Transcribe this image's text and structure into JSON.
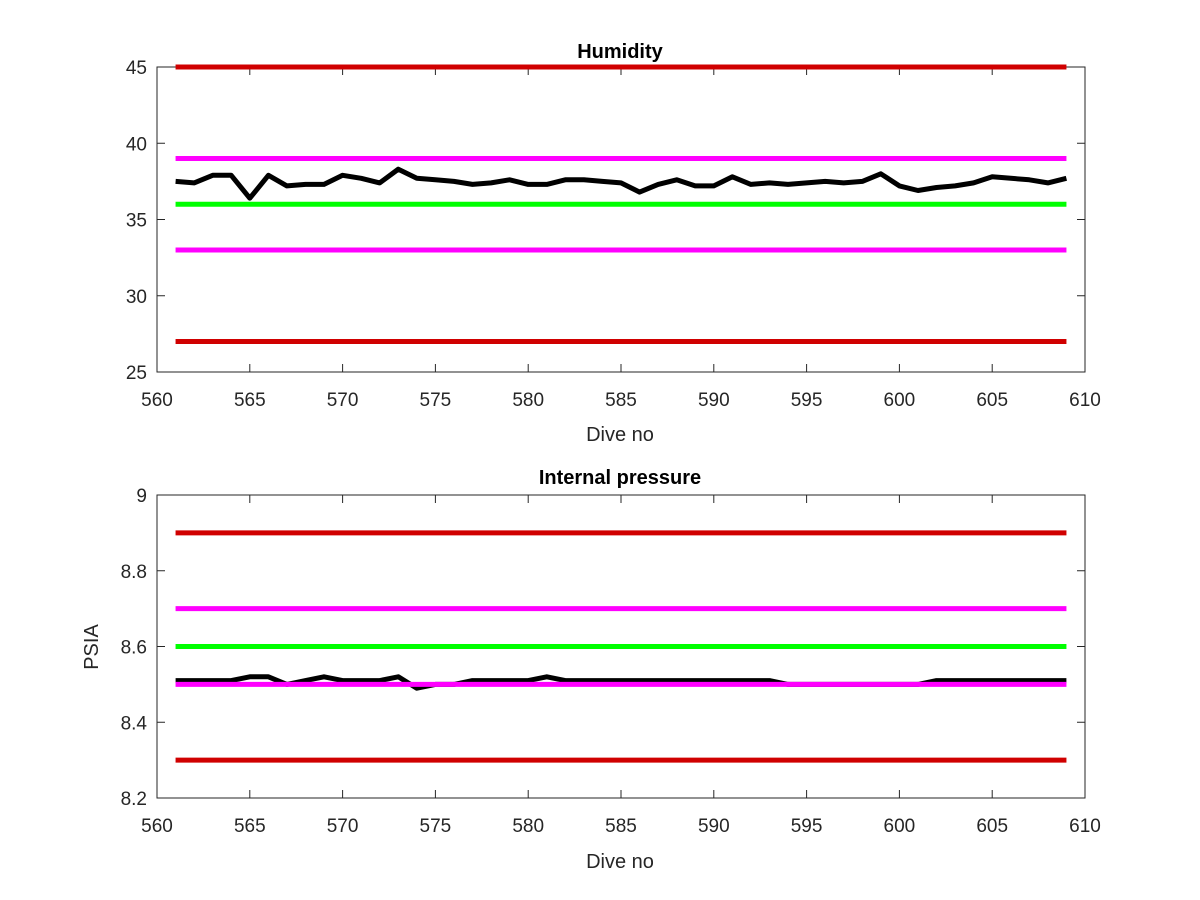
{
  "chart_data": [
    {
      "type": "line",
      "title": "Humidity",
      "xlabel": "Dive no",
      "ylabel": "",
      "xlim": [
        560,
        610
      ],
      "ylim": [
        25,
        45
      ],
      "xticks": [
        560,
        565,
        570,
        575,
        580,
        585,
        590,
        595,
        600,
        605,
        610
      ],
      "yticks": [
        25,
        30,
        35,
        40,
        45
      ],
      "grid": false,
      "legend": "none",
      "reference_lines": [
        {
          "y": 45,
          "color": "#d00000",
          "x": [
            561,
            609
          ]
        },
        {
          "y": 39,
          "color": "#ff00ff",
          "x": [
            561,
            609
          ]
        },
        {
          "y": 36,
          "color": "#00ff00",
          "x": [
            561,
            609
          ]
        },
        {
          "y": 33,
          "color": "#ff00ff",
          "x": [
            561,
            609
          ]
        },
        {
          "y": 27,
          "color": "#d00000",
          "x": [
            561,
            609
          ]
        }
      ],
      "series": [
        {
          "color": "#000000",
          "x": [
            561,
            562,
            563,
            564,
            565,
            566,
            567,
            568,
            569,
            570,
            571,
            572,
            573,
            574,
            575,
            576,
            577,
            578,
            579,
            580,
            581,
            582,
            583,
            584,
            585,
            586,
            587,
            588,
            589,
            590,
            591,
            592,
            593,
            594,
            595,
            596,
            597,
            598,
            599,
            600,
            601,
            602,
            603,
            604,
            605,
            606,
            607,
            608,
            609
          ],
          "y": [
            37.5,
            37.4,
            37.9,
            37.9,
            36.4,
            37.9,
            37.2,
            37.3,
            37.3,
            37.9,
            37.7,
            37.4,
            38.3,
            37.7,
            37.6,
            37.5,
            37.3,
            37.4,
            37.6,
            37.3,
            37.3,
            37.6,
            37.6,
            37.5,
            37.4,
            36.8,
            37.3,
            37.6,
            37.2,
            37.2,
            37.8,
            37.3,
            37.4,
            37.3,
            37.4,
            37.5,
            37.4,
            37.5,
            38.0,
            37.2,
            36.9,
            37.1,
            37.2,
            37.4,
            37.8,
            37.7,
            37.6,
            37.4,
            37.7
          ]
        }
      ]
    },
    {
      "type": "line",
      "title": "Internal pressure",
      "xlabel": "Dive no",
      "ylabel": "PSIA",
      "xlim": [
        560,
        610
      ],
      "ylim": [
        8.2,
        9
      ],
      "xticks": [
        560,
        565,
        570,
        575,
        580,
        585,
        590,
        595,
        600,
        605,
        610
      ],
      "yticks": [
        8.2,
        8.4,
        8.6,
        8.8,
        9
      ],
      "ytick_labels": [
        "8.2",
        "8.4",
        "8.6",
        "8.8",
        "9"
      ],
      "grid": false,
      "legend": "none",
      "reference_lines": [
        {
          "y": 8.9,
          "color": "#d00000",
          "x": [
            561,
            609
          ]
        },
        {
          "y": 8.7,
          "color": "#ff00ff",
          "x": [
            561,
            609
          ]
        },
        {
          "y": 8.6,
          "color": "#00ff00",
          "x": [
            561,
            609
          ]
        },
        {
          "y": 8.3,
          "color": "#d00000",
          "x": [
            561,
            609
          ]
        }
      ],
      "series": [
        {
          "color": "#000000",
          "x": [
            561,
            562,
            563,
            564,
            565,
            566,
            567,
            568,
            569,
            570,
            571,
            572,
            573,
            574,
            575,
            576,
            577,
            578,
            579,
            580,
            581,
            582,
            583,
            584,
            585,
            586,
            587,
            588,
            589,
            590,
            591,
            592,
            593,
            594,
            595,
            596,
            597,
            598,
            599,
            600,
            601,
            602,
            603,
            604,
            605,
            606,
            607,
            608,
            609
          ],
          "y": [
            8.51,
            8.51,
            8.51,
            8.51,
            8.52,
            8.52,
            8.5,
            8.51,
            8.52,
            8.51,
            8.51,
            8.51,
            8.52,
            8.49,
            8.5,
            8.5,
            8.51,
            8.51,
            8.51,
            8.51,
            8.52,
            8.51,
            8.51,
            8.51,
            8.51,
            8.51,
            8.51,
            8.51,
            8.51,
            8.51,
            8.51,
            8.51,
            8.51,
            8.5,
            8.5,
            8.5,
            8.5,
            8.5,
            8.5,
            8.5,
            8.5,
            8.51,
            8.51,
            8.51,
            8.51,
            8.51,
            8.51,
            8.51,
            8.51
          ]
        }
      ],
      "overlay_lines": [
        {
          "y": 8.5,
          "color": "#ff00ff",
          "x": [
            561,
            609
          ]
        }
      ]
    }
  ]
}
